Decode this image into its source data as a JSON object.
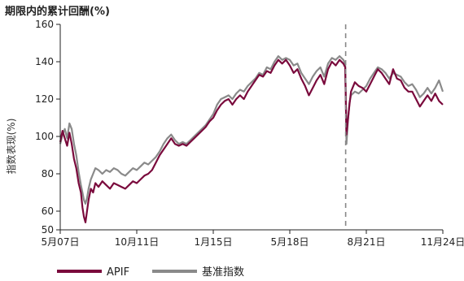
{
  "chart_data": {
    "type": "line",
    "title": "期限内的累计回酬(%)",
    "ylabel": "指数表现(%)",
    "xlabel": "",
    "ylim": [
      50,
      160
    ],
    "yticks": [
      50,
      60,
      80,
      100,
      120,
      140,
      160
    ],
    "xtick_labels": [
      "5月07日",
      "10月11日",
      "1月15日",
      "5月18日",
      "8月21日",
      "11月24日"
    ],
    "x_label_positions": [
      0,
      0.2,
      0.4,
      0.6,
      0.8,
      1.0
    ],
    "reference_line": {
      "style": "dashed",
      "x_fraction": 0.746
    },
    "legend_position": "bottom-left",
    "colors": {
      "APIF": "#7a0a3c",
      "基准指数": "#8a8a8a"
    },
    "series": [
      {
        "name": "APIF",
        "color": "#7a0a3c",
        "points": [
          [
            0.0,
            97
          ],
          [
            0.006,
            103
          ],
          [
            0.012,
            99
          ],
          [
            0.018,
            95
          ],
          [
            0.024,
            102
          ],
          [
            0.03,
            96
          ],
          [
            0.036,
            88
          ],
          [
            0.042,
            83
          ],
          [
            0.048,
            75
          ],
          [
            0.054,
            70
          ],
          [
            0.058,
            62
          ],
          [
            0.062,
            57
          ],
          [
            0.066,
            54
          ],
          [
            0.07,
            60
          ],
          [
            0.074,
            66
          ],
          [
            0.08,
            72
          ],
          [
            0.086,
            70
          ],
          [
            0.092,
            75
          ],
          [
            0.1,
            73
          ],
          [
            0.11,
            76
          ],
          [
            0.12,
            74
          ],
          [
            0.13,
            72
          ],
          [
            0.14,
            75
          ],
          [
            0.15,
            74
          ],
          [
            0.16,
            73
          ],
          [
            0.17,
            72
          ],
          [
            0.18,
            74
          ],
          [
            0.19,
            76
          ],
          [
            0.2,
            75
          ],
          [
            0.21,
            77
          ],
          [
            0.22,
            79
          ],
          [
            0.23,
            80
          ],
          [
            0.24,
            82
          ],
          [
            0.25,
            86
          ],
          [
            0.26,
            90
          ],
          [
            0.27,
            93
          ],
          [
            0.28,
            96
          ],
          [
            0.29,
            99
          ],
          [
            0.3,
            96
          ],
          [
            0.31,
            95
          ],
          [
            0.32,
            96
          ],
          [
            0.33,
            95
          ],
          [
            0.34,
            97
          ],
          [
            0.35,
            99
          ],
          [
            0.36,
            101
          ],
          [
            0.37,
            103
          ],
          [
            0.38,
            105
          ],
          [
            0.39,
            108
          ],
          [
            0.4,
            110
          ],
          [
            0.41,
            114
          ],
          [
            0.42,
            117
          ],
          [
            0.43,
            119
          ],
          [
            0.44,
            120
          ],
          [
            0.45,
            117
          ],
          [
            0.46,
            120
          ],
          [
            0.47,
            122
          ],
          [
            0.48,
            120
          ],
          [
            0.49,
            124
          ],
          [
            0.5,
            127
          ],
          [
            0.51,
            130
          ],
          [
            0.52,
            133
          ],
          [
            0.53,
            132
          ],
          [
            0.54,
            135
          ],
          [
            0.55,
            134
          ],
          [
            0.56,
            138
          ],
          [
            0.57,
            141
          ],
          [
            0.58,
            139
          ],
          [
            0.59,
            141
          ],
          [
            0.6,
            138
          ],
          [
            0.61,
            134
          ],
          [
            0.62,
            136
          ],
          [
            0.63,
            131
          ],
          [
            0.64,
            127
          ],
          [
            0.65,
            122
          ],
          [
            0.66,
            126
          ],
          [
            0.67,
            130
          ],
          [
            0.68,
            133
          ],
          [
            0.69,
            128
          ],
          [
            0.7,
            136
          ],
          [
            0.71,
            140
          ],
          [
            0.72,
            138
          ],
          [
            0.73,
            141
          ],
          [
            0.74,
            139
          ],
          [
            0.745,
            137
          ],
          [
            0.748,
            101
          ],
          [
            0.752,
            109
          ],
          [
            0.756,
            117
          ],
          [
            0.76,
            124
          ],
          [
            0.77,
            129
          ],
          [
            0.78,
            127
          ],
          [
            0.79,
            126
          ],
          [
            0.8,
            124
          ],
          [
            0.81,
            128
          ],
          [
            0.82,
            132
          ],
          [
            0.83,
            136
          ],
          [
            0.84,
            134
          ],
          [
            0.85,
            131
          ],
          [
            0.86,
            128
          ],
          [
            0.87,
            136
          ],
          [
            0.88,
            131
          ],
          [
            0.89,
            130
          ],
          [
            0.9,
            126
          ],
          [
            0.91,
            124
          ],
          [
            0.92,
            124
          ],
          [
            0.93,
            120
          ],
          [
            0.94,
            116
          ],
          [
            0.95,
            119
          ],
          [
            0.96,
            122
          ],
          [
            0.97,
            119
          ],
          [
            0.98,
            123
          ],
          [
            0.99,
            119
          ],
          [
            1.0,
            117
          ]
        ]
      },
      {
        "name": "基准指数",
        "color": "#8a8a8a",
        "points": [
          [
            0.0,
            96
          ],
          [
            0.006,
            101
          ],
          [
            0.012,
            104
          ],
          [
            0.018,
            99
          ],
          [
            0.024,
            107
          ],
          [
            0.03,
            104
          ],
          [
            0.036,
            96
          ],
          [
            0.042,
            90
          ],
          [
            0.048,
            81
          ],
          [
            0.054,
            74
          ],
          [
            0.058,
            70
          ],
          [
            0.062,
            66
          ],
          [
            0.066,
            64
          ],
          [
            0.07,
            67
          ],
          [
            0.074,
            72
          ],
          [
            0.08,
            77
          ],
          [
            0.086,
            80
          ],
          [
            0.092,
            83
          ],
          [
            0.1,
            82
          ],
          [
            0.11,
            80
          ],
          [
            0.12,
            82
          ],
          [
            0.13,
            81
          ],
          [
            0.14,
            83
          ],
          [
            0.15,
            82
          ],
          [
            0.16,
            80
          ],
          [
            0.17,
            79
          ],
          [
            0.18,
            81
          ],
          [
            0.19,
            83
          ],
          [
            0.2,
            82
          ],
          [
            0.21,
            84
          ],
          [
            0.22,
            86
          ],
          [
            0.23,
            85
          ],
          [
            0.24,
            87
          ],
          [
            0.25,
            89
          ],
          [
            0.26,
            92
          ],
          [
            0.27,
            96
          ],
          [
            0.28,
            99
          ],
          [
            0.29,
            101
          ],
          [
            0.3,
            98
          ],
          [
            0.31,
            96
          ],
          [
            0.32,
            97
          ],
          [
            0.33,
            96
          ],
          [
            0.34,
            98
          ],
          [
            0.35,
            100
          ],
          [
            0.36,
            102
          ],
          [
            0.37,
            104
          ],
          [
            0.38,
            106
          ],
          [
            0.39,
            109
          ],
          [
            0.4,
            112
          ],
          [
            0.41,
            117
          ],
          [
            0.42,
            120
          ],
          [
            0.43,
            121
          ],
          [
            0.44,
            122
          ],
          [
            0.45,
            120
          ],
          [
            0.46,
            123
          ],
          [
            0.47,
            125
          ],
          [
            0.48,
            124
          ],
          [
            0.49,
            127
          ],
          [
            0.5,
            129
          ],
          [
            0.51,
            131
          ],
          [
            0.52,
            134
          ],
          [
            0.53,
            133
          ],
          [
            0.54,
            137
          ],
          [
            0.55,
            136
          ],
          [
            0.56,
            140
          ],
          [
            0.57,
            143
          ],
          [
            0.58,
            141
          ],
          [
            0.59,
            142
          ],
          [
            0.6,
            141
          ],
          [
            0.61,
            138
          ],
          [
            0.62,
            139
          ],
          [
            0.63,
            134
          ],
          [
            0.64,
            131
          ],
          [
            0.65,
            128
          ],
          [
            0.66,
            132
          ],
          [
            0.67,
            135
          ],
          [
            0.68,
            137
          ],
          [
            0.69,
            132
          ],
          [
            0.7,
            139
          ],
          [
            0.71,
            142
          ],
          [
            0.72,
            141
          ],
          [
            0.73,
            143
          ],
          [
            0.74,
            141
          ],
          [
            0.745,
            139
          ],
          [
            0.748,
            96
          ],
          [
            0.752,
            108
          ],
          [
            0.756,
            118
          ],
          [
            0.76,
            122
          ],
          [
            0.77,
            124
          ],
          [
            0.78,
            123
          ],
          [
            0.79,
            125
          ],
          [
            0.8,
            127
          ],
          [
            0.81,
            131
          ],
          [
            0.82,
            134
          ],
          [
            0.83,
            137
          ],
          [
            0.84,
            136
          ],
          [
            0.85,
            134
          ],
          [
            0.86,
            131
          ],
          [
            0.87,
            134
          ],
          [
            0.88,
            133
          ],
          [
            0.89,
            132
          ],
          [
            0.9,
            129
          ],
          [
            0.91,
            127
          ],
          [
            0.92,
            128
          ],
          [
            0.93,
            125
          ],
          [
            0.94,
            121
          ],
          [
            0.95,
            123
          ],
          [
            0.96,
            126
          ],
          [
            0.97,
            123
          ],
          [
            0.98,
            126
          ],
          [
            0.99,
            130
          ],
          [
            1.0,
            124
          ]
        ]
      }
    ]
  }
}
